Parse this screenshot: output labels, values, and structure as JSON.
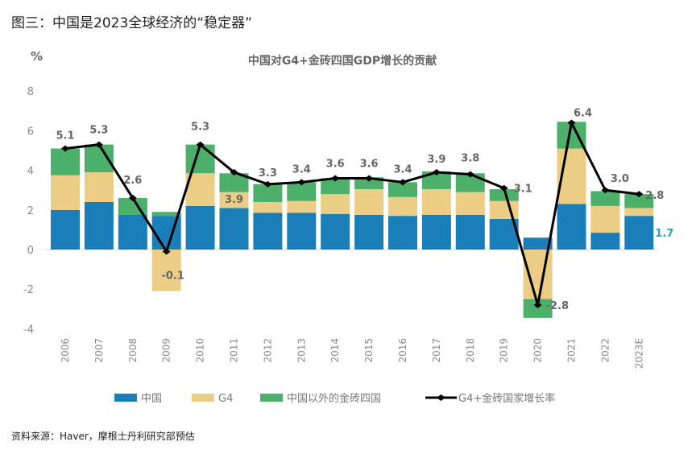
{
  "figure_title": "图三：中国是2023全球经济的“稳定器”",
  "source": "资料来源：Haver，摩根士丹利研究部预估",
  "colors": {
    "china": "#1a7fb8",
    "g4": "#ebcd85",
    "other_brics": "#4caf6a",
    "line": "#000000",
    "highlight_label": "#2a9fd6"
  },
  "chart_data": {
    "type": "bar",
    "stacked": true,
    "title": "中国对G4+金砖四国GDP增长的贡献",
    "ylabel": "%",
    "xlabel": "",
    "ylim": [
      -4,
      8
    ],
    "yticks": [
      "8",
      "6",
      "4",
      "2",
      "0",
      "-2",
      "-4"
    ],
    "ytick_values": [
      8,
      6,
      4,
      2,
      0,
      -2,
      -4
    ],
    "grid": false,
    "legend_position": "bottom",
    "categories": [
      "2006",
      "2007",
      "2008",
      "2009",
      "2010",
      "2011",
      "2012",
      "2013",
      "2014",
      "2015",
      "2016",
      "2017",
      "2018",
      "2019",
      "2020",
      "2021",
      "2022",
      "2023E"
    ],
    "series": [
      {
        "name": "中国",
        "type": "bar",
        "color_key": "china",
        "values": [
          2.0,
          2.4,
          1.75,
          1.7,
          2.2,
          2.1,
          1.85,
          1.85,
          1.8,
          1.75,
          1.7,
          1.75,
          1.75,
          1.55,
          0.6,
          2.3,
          0.85,
          1.7
        ]
      },
      {
        "name": "G4",
        "type": "bar",
        "color_key": "g4",
        "values": [
          1.75,
          1.5,
          0.0,
          -2.1,
          1.65,
          0.8,
          0.55,
          0.6,
          1.0,
          1.3,
          0.95,
          1.3,
          1.15,
          0.9,
          -2.5,
          2.8,
          1.35,
          0.4
        ]
      },
      {
        "name": "中国以外的金砖四国",
        "type": "bar",
        "color_key": "other_brics",
        "values": [
          1.35,
          1.4,
          0.85,
          0.2,
          1.45,
          0.95,
          0.9,
          0.95,
          0.8,
          0.6,
          0.75,
          0.9,
          0.95,
          0.6,
          -0.95,
          1.35,
          0.75,
          0.7
        ]
      },
      {
        "name": "G4+金砖国家增长率",
        "type": "line",
        "color_key": "line",
        "values": [
          5.1,
          5.3,
          2.6,
          -0.1,
          5.3,
          3.9,
          3.3,
          3.4,
          3.6,
          3.6,
          3.4,
          3.9,
          3.8,
          3.1,
          -2.8,
          6.4,
          3.0,
          2.8
        ]
      }
    ],
    "data_labels": [
      "5.1",
      "5.3",
      "2.6",
      "-0.1",
      "5.3",
      "3.9",
      "3.3",
      "3.4",
      "3.6",
      "3.6",
      "3.4",
      "3.9",
      "3.8",
      "3.1",
      "-2.8",
      "6.4",
      "3.0",
      "2.8"
    ],
    "annotation_china_2023E": "1.7"
  }
}
